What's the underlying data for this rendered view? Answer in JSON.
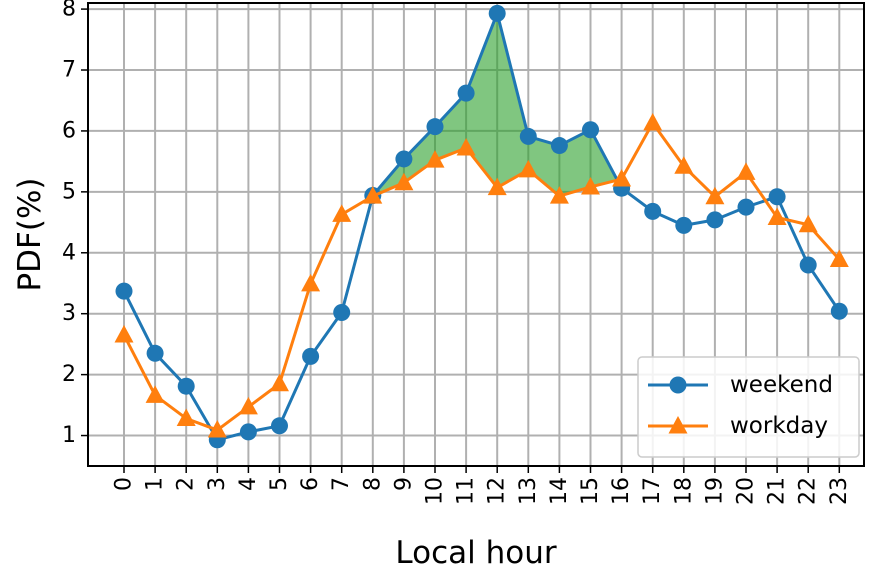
{
  "chart_data": {
    "type": "line",
    "xlabel": "Local hour",
    "ylabel": "PDF(%)",
    "categories": [
      "0",
      "1",
      "2",
      "3",
      "4",
      "5",
      "6",
      "7",
      "8",
      "9",
      "10",
      "11",
      "12",
      "13",
      "14",
      "15",
      "16",
      "17",
      "18",
      "19",
      "20",
      "21",
      "22",
      "23"
    ],
    "ylim": [
      0.5,
      8.1
    ],
    "yticks": [
      1,
      2,
      3,
      4,
      5,
      6,
      7,
      8
    ],
    "grid": true,
    "legend_position": "lower-right",
    "series": [
      {
        "name": "weekend",
        "color": "#1f77b4",
        "marker": "circle",
        "values": [
          3.37,
          2.35,
          1.81,
          0.93,
          1.06,
          1.16,
          2.3,
          3.02,
          4.94,
          5.54,
          6.07,
          6.62,
          7.93,
          5.91,
          5.76,
          6.02,
          5.06,
          4.68,
          4.45,
          4.54,
          4.75,
          4.92,
          3.8,
          3.04
        ]
      },
      {
        "name": "workday",
        "color": "#ff7f0e",
        "marker": "triangle",
        "values": [
          2.65,
          1.66,
          1.28,
          1.09,
          1.47,
          1.85,
          3.49,
          4.63,
          4.93,
          5.15,
          5.52,
          5.72,
          5.07,
          5.36,
          4.93,
          5.08,
          5.21,
          6.13,
          5.42,
          4.92,
          5.32,
          4.58,
          4.46,
          3.89
        ]
      }
    ],
    "shaded_region": {
      "x_range": [
        8,
        16
      ],
      "between": [
        "weekend",
        "workday"
      ],
      "color": "#2ca02c"
    }
  }
}
